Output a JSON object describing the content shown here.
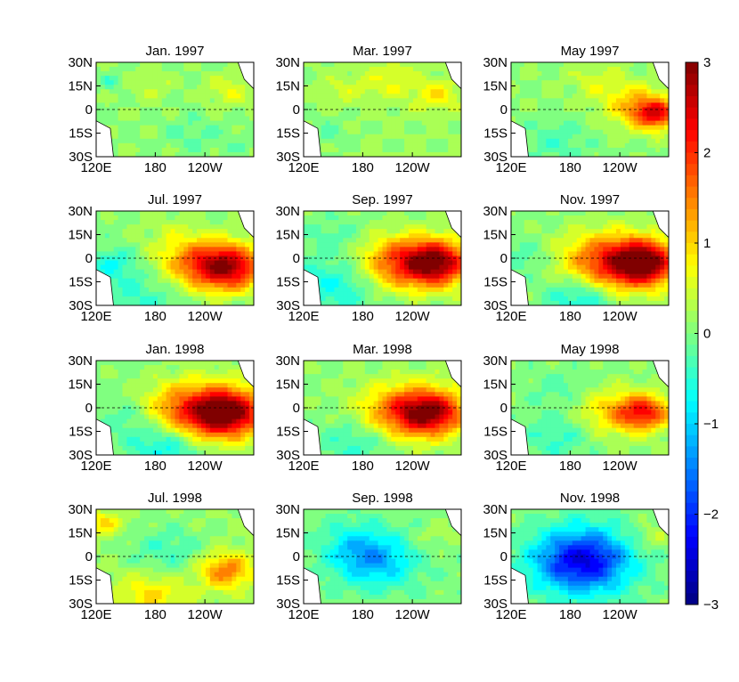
{
  "chart_data": {
    "type": "heatmap",
    "panels": [
      {
        "title": "Jan. 1997",
        "blobs": [
          {
            "cx": 0.08,
            "cy": 0.2,
            "r": 0.05,
            "v": -0.4
          },
          {
            "cx": 0.35,
            "cy": 0.25,
            "r": 0.09,
            "v": 0.3
          },
          {
            "cx": 0.6,
            "cy": 0.75,
            "r": 0.12,
            "v": -0.3
          },
          {
            "cx": 0.85,
            "cy": 0.3,
            "r": 0.1,
            "v": 0.5
          },
          {
            "cx": 0.9,
            "cy": 0.85,
            "r": 0.08,
            "v": -0.2
          }
        ],
        "base": 0.1
      },
      {
        "title": "Mar. 1997",
        "blobs": [
          {
            "cx": 0.25,
            "cy": 0.3,
            "r": 0.1,
            "v": 0.3
          },
          {
            "cx": 0.55,
            "cy": 0.2,
            "r": 0.12,
            "v": 0.5
          },
          {
            "cx": 0.85,
            "cy": 0.35,
            "r": 0.1,
            "v": 0.7
          },
          {
            "cx": 0.15,
            "cy": 0.75,
            "r": 0.1,
            "v": -0.3
          }
        ],
        "base": 0.15
      },
      {
        "title": "May 1997",
        "blobs": [
          {
            "cx": 0.92,
            "cy": 0.55,
            "r": 0.1,
            "v": 2.0
          },
          {
            "cx": 0.78,
            "cy": 0.45,
            "r": 0.14,
            "v": 0.9
          },
          {
            "cx": 0.3,
            "cy": 0.85,
            "r": 0.15,
            "v": -0.4
          },
          {
            "cx": 0.55,
            "cy": 0.2,
            "r": 0.12,
            "v": 0.4
          }
        ],
        "base": 0.1
      },
      {
        "title": "Jul. 1997",
        "blobs": [
          {
            "cx": 0.85,
            "cy": 0.6,
            "r": 0.15,
            "v": 2.3
          },
          {
            "cx": 0.62,
            "cy": 0.55,
            "r": 0.18,
            "v": 1.4
          },
          {
            "cx": 0.1,
            "cy": 0.55,
            "r": 0.1,
            "v": -0.6
          },
          {
            "cx": 0.3,
            "cy": 0.85,
            "r": 0.2,
            "v": -0.5
          },
          {
            "cx": 0.45,
            "cy": 0.15,
            "r": 0.12,
            "v": 0.2
          }
        ],
        "base": 0.05
      },
      {
        "title": "Sep. 1997",
        "blobs": [
          {
            "cx": 0.85,
            "cy": 0.55,
            "r": 0.15,
            "v": 2.6
          },
          {
            "cx": 0.6,
            "cy": 0.55,
            "r": 0.18,
            "v": 1.6
          },
          {
            "cx": 0.2,
            "cy": 0.8,
            "r": 0.2,
            "v": -0.7
          },
          {
            "cx": 0.2,
            "cy": 0.25,
            "r": 0.12,
            "v": -0.3
          }
        ],
        "base": 0.05
      },
      {
        "title": "Nov. 1997",
        "blobs": [
          {
            "cx": 0.85,
            "cy": 0.55,
            "r": 0.15,
            "v": 2.7
          },
          {
            "cx": 0.6,
            "cy": 0.55,
            "r": 0.2,
            "v": 1.8
          },
          {
            "cx": 0.45,
            "cy": 0.9,
            "r": 0.15,
            "v": -0.9
          },
          {
            "cx": 0.1,
            "cy": 0.5,
            "r": 0.1,
            "v": -0.4
          }
        ],
        "base": 0.05
      },
      {
        "title": "Jan. 1998",
        "blobs": [
          {
            "cx": 0.85,
            "cy": 0.55,
            "r": 0.16,
            "v": 2.6
          },
          {
            "cx": 0.6,
            "cy": 0.55,
            "r": 0.2,
            "v": 1.8
          },
          {
            "cx": 0.45,
            "cy": 0.88,
            "r": 0.16,
            "v": -1.0
          },
          {
            "cx": 0.2,
            "cy": 0.6,
            "r": 0.12,
            "v": -0.4
          }
        ],
        "base": 0.05
      },
      {
        "title": "Mar. 1998",
        "blobs": [
          {
            "cx": 0.82,
            "cy": 0.55,
            "r": 0.15,
            "v": 2.3
          },
          {
            "cx": 0.6,
            "cy": 0.55,
            "r": 0.18,
            "v": 1.5
          },
          {
            "cx": 0.35,
            "cy": 0.85,
            "r": 0.18,
            "v": -0.6
          }
        ],
        "base": 0.1
      },
      {
        "title": "May 1998",
        "blobs": [
          {
            "cx": 0.85,
            "cy": 0.55,
            "r": 0.12,
            "v": 1.8
          },
          {
            "cx": 0.65,
            "cy": 0.55,
            "r": 0.16,
            "v": 0.9
          },
          {
            "cx": 0.3,
            "cy": 0.8,
            "r": 0.15,
            "v": -0.5
          },
          {
            "cx": 0.3,
            "cy": 0.3,
            "r": 0.12,
            "v": -0.3
          }
        ],
        "base": 0.05
      },
      {
        "title": "Jul. 1998",
        "blobs": [
          {
            "cx": 0.82,
            "cy": 0.65,
            "r": 0.12,
            "v": 1.4
          },
          {
            "cx": 0.45,
            "cy": 0.45,
            "r": 0.18,
            "v": -0.5
          },
          {
            "cx": 0.35,
            "cy": 0.9,
            "r": 0.15,
            "v": 0.8
          },
          {
            "cx": 0.05,
            "cy": 0.15,
            "r": 0.08,
            "v": 0.8
          }
        ],
        "base": 0.15
      },
      {
        "title": "Sep. 1998",
        "blobs": [
          {
            "cx": 0.45,
            "cy": 0.55,
            "r": 0.18,
            "v": -1.2
          },
          {
            "cx": 0.3,
            "cy": 0.35,
            "r": 0.15,
            "v": -0.5
          },
          {
            "cx": 0.85,
            "cy": 0.3,
            "r": 0.1,
            "v": 0.3
          }
        ],
        "base": 0.0
      },
      {
        "title": "Nov. 1998",
        "blobs": [
          {
            "cx": 0.45,
            "cy": 0.55,
            "r": 0.2,
            "v": -2.0
          },
          {
            "cx": 0.45,
            "cy": 0.55,
            "r": 0.35,
            "v": -0.6
          },
          {
            "cx": 0.9,
            "cy": 0.3,
            "r": 0.1,
            "v": 0.4
          }
        ],
        "base": 0.15
      }
    ],
    "yticks": [
      "30N",
      "15N",
      "0",
      "15S",
      "30S"
    ],
    "xticks": [
      "120E",
      "180",
      "120W"
    ],
    "colorbar": {
      "min": -3,
      "max": 3,
      "ticks": [
        "3",
        "2",
        "1",
        "0",
        "−1",
        "−2",
        "−3"
      ]
    },
    "colormap": "jet",
    "xlabel": "",
    "ylabel": ""
  }
}
